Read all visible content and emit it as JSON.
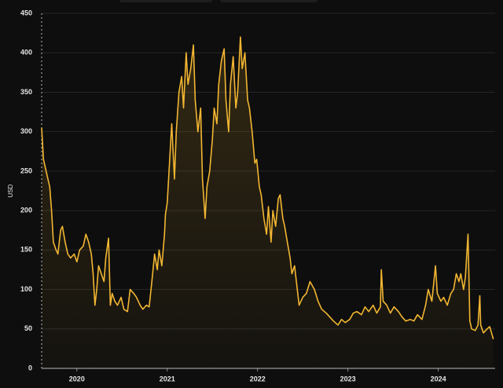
{
  "chart_data": {
    "type": "line",
    "y_label": "USD",
    "color": "#f2b632",
    "x": [
      2019.61,
      2019.63,
      2019.65,
      2019.68,
      2019.7,
      2019.72,
      2019.74,
      2019.77,
      2019.79,
      2019.82,
      2019.84,
      2019.87,
      2019.9,
      2019.93,
      2019.97,
      2020.0,
      2020.03,
      2020.07,
      2020.1,
      2020.13,
      2020.16,
      2020.18,
      2020.2,
      2020.22,
      2020.24,
      2020.27,
      2020.3,
      2020.32,
      2020.35,
      2020.37,
      2020.39,
      2020.42,
      2020.45,
      2020.49,
      2020.52,
      2020.56,
      2020.59,
      2020.63,
      2020.66,
      2020.7,
      2020.73,
      2020.77,
      2020.8,
      2020.83,
      2020.86,
      2020.89,
      2020.91,
      2020.94,
      2020.97,
      2020.98,
      2021.0,
      2021.03,
      2021.05,
      2021.08,
      2021.1,
      2021.13,
      2021.16,
      2021.18,
      2021.21,
      2021.23,
      2021.26,
      2021.29,
      2021.31,
      2021.34,
      2021.37,
      2021.39,
      2021.42,
      2021.44,
      2021.47,
      2021.5,
      2021.52,
      2021.55,
      2021.57,
      2021.6,
      2021.63,
      2021.65,
      2021.68,
      2021.7,
      2021.73,
      2021.76,
      2021.78,
      2021.81,
      2021.83,
      2021.86,
      2021.89,
      2021.91,
      2021.94,
      2021.97,
      2021.99,
      2022.02,
      2022.04,
      2022.07,
      2022.1,
      2022.12,
      2022.15,
      2022.17,
      2022.2,
      2022.23,
      2022.25,
      2022.28,
      2022.3,
      2022.33,
      2022.36,
      2022.38,
      2022.41,
      2022.43,
      2022.46,
      2022.5,
      2022.54,
      2022.58,
      2022.63,
      2022.67,
      2022.71,
      2022.76,
      2022.8,
      2022.84,
      2022.89,
      2022.93,
      2022.97,
      2023.02,
      2023.06,
      2023.1,
      2023.15,
      2023.19,
      2023.23,
      2023.28,
      2023.32,
      2023.36,
      2023.37,
      2023.39,
      2023.43,
      2023.47,
      2023.51,
      2023.56,
      2023.6,
      2023.64,
      2023.69,
      2023.73,
      2023.77,
      2023.82,
      2023.86,
      2023.89,
      2023.93,
      2023.97,
      2023.99,
      2024.03,
      2024.06,
      2024.1,
      2024.14,
      2024.17,
      2024.2,
      2024.23,
      2024.25,
      2024.28,
      2024.3,
      2024.33,
      2024.35,
      2024.37,
      2024.41,
      2024.44,
      2024.46,
      2024.47,
      2024.5,
      2024.54,
      2024.57,
      2024.59,
      2024.61
    ],
    "values": [
      305,
      265,
      255,
      240,
      230,
      200,
      160,
      150,
      145,
      175,
      180,
      160,
      145,
      140,
      145,
      135,
      150,
      155,
      170,
      160,
      145,
      120,
      80,
      100,
      130,
      120,
      110,
      140,
      165,
      80,
      95,
      85,
      80,
      90,
      75,
      72,
      100,
      95,
      90,
      80,
      75,
      80,
      78,
      110,
      145,
      125,
      150,
      130,
      170,
      195,
      210,
      270,
      310,
      240,
      300,
      350,
      370,
      330,
      400,
      360,
      380,
      410,
      340,
      300,
      330,
      240,
      190,
      230,
      250,
      290,
      330,
      310,
      360,
      390,
      405,
      340,
      300,
      360,
      395,
      330,
      350,
      420,
      380,
      400,
      340,
      330,
      300,
      260,
      265,
      230,
      220,
      190,
      170,
      205,
      160,
      200,
      180,
      215,
      220,
      190,
      180,
      160,
      140,
      120,
      130,
      110,
      80,
      90,
      95,
      110,
      100,
      85,
      75,
      70,
      65,
      60,
      55,
      62,
      58,
      62,
      70,
      72,
      68,
      78,
      72,
      80,
      70,
      78,
      125,
      85,
      80,
      70,
      78,
      72,
      65,
      60,
      62,
      60,
      68,
      62,
      80,
      100,
      85,
      130,
      95,
      85,
      90,
      80,
      95,
      100,
      120,
      110,
      120,
      100,
      115,
      170,
      60,
      50,
      48,
      55,
      92,
      55,
      45,
      50,
      53,
      45,
      37
    ],
    "xlim": [
      2019.61,
      2024.63
    ],
    "ylim": [
      0,
      450
    ],
    "xticks": [
      2020,
      2021,
      2022,
      2023,
      2024
    ],
    "yticks": [
      0,
      50,
      100,
      150,
      200,
      250,
      300,
      350,
      400,
      450
    ],
    "grid": true
  }
}
